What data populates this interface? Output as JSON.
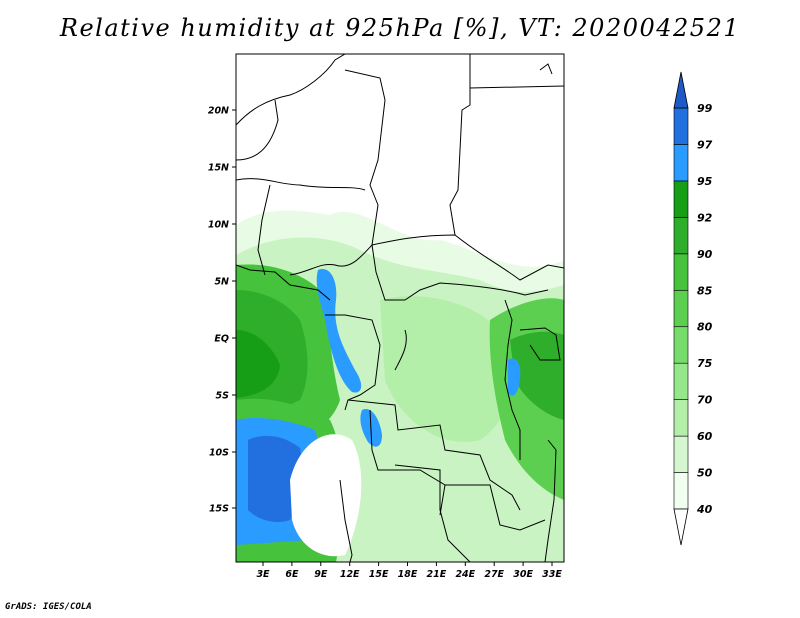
{
  "title": "Relative humidity at 925hPa [%], VT: 2020042521",
  "credit": "GrADS: IGES/COLA",
  "map": {
    "lat_ticks": [
      "20N",
      "15N",
      "10N",
      "5N",
      "EQ",
      "5S",
      "10S",
      "15S"
    ],
    "lon_ticks": [
      "3E",
      "6E",
      "9E",
      "12E",
      "15E",
      "18E",
      "21E",
      "24E",
      "27E",
      "30E",
      "33E"
    ]
  },
  "colorbar": {
    "levels": [
      "40",
      "50",
      "60",
      "70",
      "75",
      "80",
      "85",
      "90",
      "92",
      "95",
      "97",
      "99"
    ],
    "colors": [
      "#f0fff0",
      "#d4f7cf",
      "#b4efaa",
      "#96e68c",
      "#78dc6c",
      "#5ccf50",
      "#46c23c",
      "#2fae2b",
      "#169e16",
      "#2a9bff",
      "#226fe0",
      "#1f58c8"
    ],
    "low_arrow_color": "#ffffff",
    "high_arrow_color": "#1f58c8"
  }
}
